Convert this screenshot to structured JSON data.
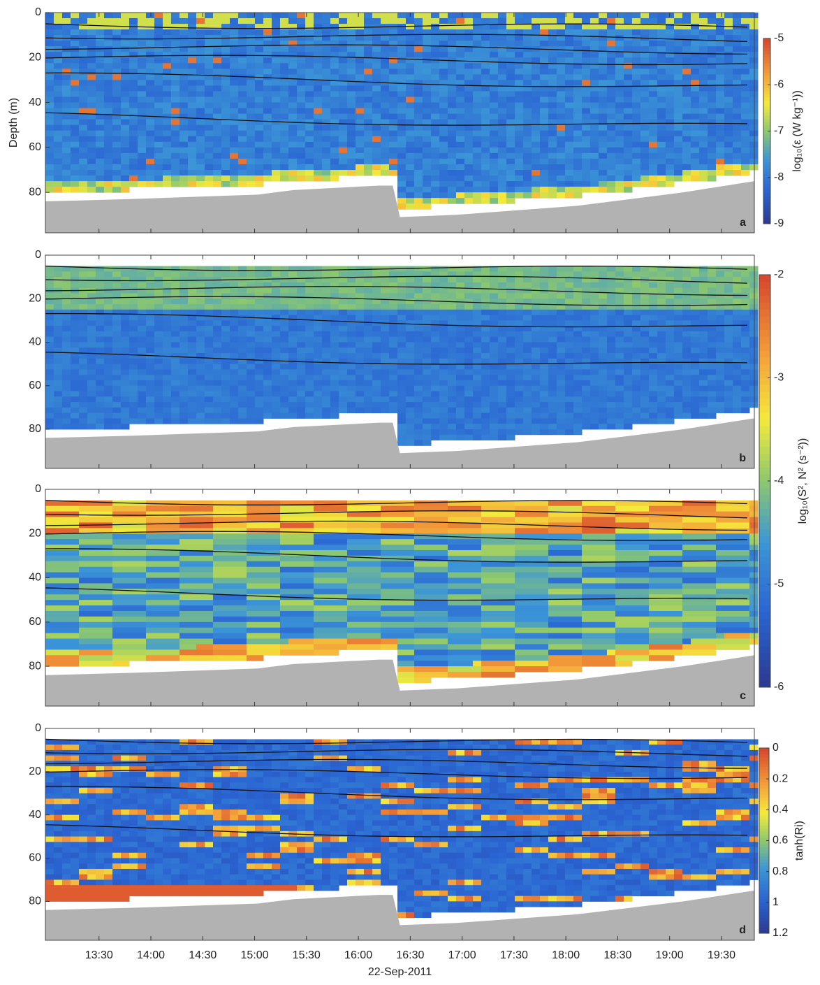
{
  "chart_data": [
    {
      "type": "heatmap",
      "panel_label": "a",
      "y_label": "Depth (m)",
      "ylim": [
        0,
        98
      ],
      "y_inverted": true,
      "yticks": [
        0,
        20,
        40,
        60,
        80
      ],
      "xlim": [
        "12:59",
        "19:49"
      ],
      "xticks": [
        "13:30",
        "14:00",
        "14:30",
        "15:00",
        "15:30",
        "16:00",
        "16:30",
        "17:00",
        "17:30",
        "18:00",
        "18:30",
        "19:00",
        "19:30"
      ],
      "colorbar": {
        "label": "log₁₀(ε (W kg⁻¹))",
        "lim": [
          -9,
          -5
        ],
        "ticks": [
          -5,
          -6,
          -7,
          -8,
          -9
        ]
      }
    },
    {
      "type": "heatmap",
      "panel_label": "b",
      "ylim": [
        0,
        98
      ],
      "y_inverted": true,
      "yticks": [
        0,
        20,
        40,
        60,
        80
      ],
      "xlim": [
        "12:59",
        "19:49"
      ],
      "xticks": [
        "13:30",
        "14:00",
        "14:30",
        "15:00",
        "15:30",
        "16:00",
        "16:30",
        "17:00",
        "17:30",
        "18:00",
        "18:30",
        "19:00",
        "19:30"
      ],
      "colorbar": {
        "label": "log₁₀(S², N² (s⁻²))",
        "lim": [
          -6,
          -2
        ],
        "ticks": [
          -2,
          -3,
          -4,
          -5,
          -6
        ]
      }
    },
    {
      "type": "heatmap",
      "panel_label": "c",
      "ylim": [
        0,
        98
      ],
      "y_inverted": true,
      "yticks": [
        0,
        20,
        40,
        60,
        80
      ],
      "xlim": [
        "12:59",
        "19:49"
      ],
      "xticks": [
        "13:30",
        "14:00",
        "14:30",
        "15:00",
        "15:30",
        "16:00",
        "16:30",
        "17:00",
        "17:30",
        "18:00",
        "18:30",
        "19:00",
        "19:30"
      ]
    },
    {
      "type": "heatmap",
      "panel_label": "d",
      "x_label": "22-Sep-2011",
      "ylim": [
        0,
        98
      ],
      "y_inverted": true,
      "yticks": [
        0,
        20,
        40,
        60,
        80
      ],
      "xlim": [
        "12:59",
        "19:49"
      ],
      "xticks": [
        "13:30",
        "14:00",
        "14:30",
        "15:00",
        "15:30",
        "16:00",
        "16:30",
        "17:00",
        "17:30",
        "18:00",
        "18:30",
        "19:00",
        "19:30"
      ],
      "xtick_labels": true,
      "colorbar": {
        "label": "tanh(Ri)",
        "lim": [
          1.2,
          0
        ],
        "ticks": [
          0,
          0.2,
          0.4,
          0.6,
          0.8,
          1,
          1.2
        ]
      }
    }
  ]
}
